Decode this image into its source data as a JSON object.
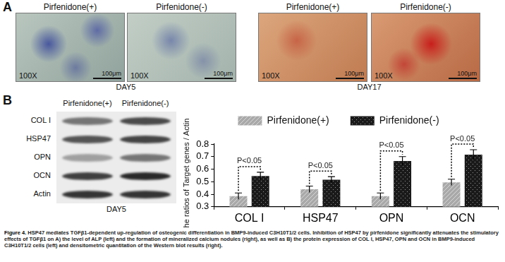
{
  "figure": {
    "panel_a": {
      "label": "A",
      "groups": [
        {
          "day": "DAY5",
          "images": [
            {
              "title": "Pirfenidone(+)",
              "magnification": "100X",
              "scale_bar": "100μm"
            },
            {
              "title": "Pirfenidone(-)",
              "magnification": "100X",
              "scale_bar": "100μm"
            }
          ]
        },
        {
          "day": "DAY17",
          "images": [
            {
              "title": "Pirfenidone(+)",
              "magnification": "100X",
              "scale_bar": "100μm"
            },
            {
              "title": "Pirfenidone(-)",
              "magnification": "100X",
              "scale_bar": "100μm"
            }
          ]
        }
      ]
    },
    "panel_b": {
      "label": "B",
      "blot": {
        "columns": [
          "Pirfenidone(+)",
          "Pirfenidone(-)"
        ],
        "rows": [
          "COL I",
          "HSP47",
          "OPN",
          "OCN",
          "Actin"
        ],
        "day": "DAY5"
      }
    },
    "caption": {
      "label": "Figure 4.",
      "text": "HSP47 mediates TGFβ1-dependent up-regulation of osteogenic differentiation in BMP9-induced C3H10T1/2 cells. Inhibition of HSP47 by pirfenidone significantly attenuates the stimulatory effects of TGFβ1 on A) the level of ALP (left) and the formation of mineralized calcium nodules (right), as well as B) the protein expression of COL I, HSP47, OPN and OCN in BMP9-induced C3H10T1/2 cells (left) and densitometric quantitation of the Western blot results (right)."
    }
  },
  "chart_data": {
    "type": "bar",
    "y_label": "The ratios of Target genes / Actin",
    "categories": [
      "COL I",
      "HSP47",
      "OPN",
      "OCN"
    ],
    "series": [
      {
        "name": "Pirfenidone(+)",
        "color": "#a9a9a9",
        "values": [
          0.385,
          0.44,
          0.385,
          0.495
        ],
        "errors": [
          0.025,
          0.025,
          0.025,
          0.025
        ]
      },
      {
        "name": "Pirfenidone(-)",
        "color": "#1a1a1a",
        "values": [
          0.545,
          0.515,
          0.665,
          0.715
        ],
        "errors": [
          0.03,
          0.025,
          0.035,
          0.04
        ]
      }
    ],
    "annotations": [
      "P<0.05",
      "P<0.05",
      "P<0.05",
      "P<0.05"
    ],
    "ylim": [
      0.3,
      0.8
    ],
    "yticks": [
      0.3,
      0.4,
      0.5,
      0.6,
      0.7,
      0.8
    ],
    "grid": false,
    "legend": "top"
  }
}
